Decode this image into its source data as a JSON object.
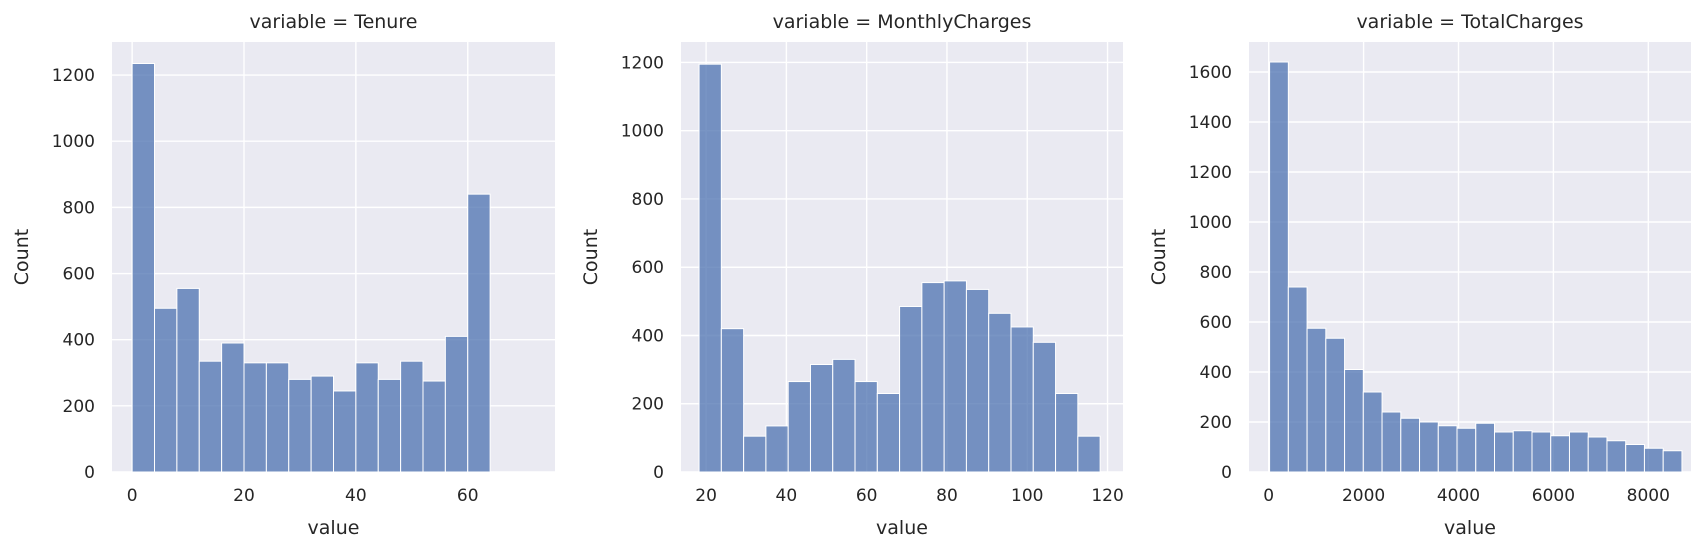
{
  "chart_data": [
    {
      "type": "bar",
      "title": "variable = Tenure",
      "xlabel": "value",
      "ylabel": "Count",
      "xlim": [
        -3.6,
        75.6
      ],
      "ylim": [
        0,
        1300
      ],
      "xticks": [
        0,
        20,
        40,
        60
      ],
      "yticks": [
        0,
        200,
        400,
        600,
        800,
        1000,
        1200
      ],
      "grid": true,
      "bin_edges": [
        0,
        4,
        8,
        12,
        16,
        20,
        24,
        28,
        32,
        36,
        40,
        44,
        48,
        52,
        56,
        60,
        64,
        68,
        72
      ],
      "values": [
        1235,
        495,
        555,
        335,
        390,
        330,
        330,
        280,
        290,
        245,
        330,
        280,
        335,
        275,
        410,
        840,
        0,
        0
      ]
    },
    {
      "type": "bar",
      "title": "variable = MonthlyCharges",
      "xlabel": "value",
      "ylabel": "Count",
      "xlim": [
        13.75,
        123.85
      ],
      "ylim": [
        0,
        1260
      ],
      "xticks": [
        20,
        40,
        60,
        80,
        100,
        120
      ],
      "yticks": [
        0,
        200,
        400,
        600,
        800,
        1000,
        1200
      ],
      "grid": true,
      "bin_edges": [
        18.25,
        23.8,
        29.35,
        34.9,
        40.45,
        46.0,
        51.55,
        57.1,
        62.65,
        68.2,
        73.75,
        79.3,
        84.85,
        90.4,
        95.95,
        101.5,
        107.05,
        112.6,
        118.15
      ],
      "values": [
        1195,
        420,
        105,
        135,
        265,
        315,
        330,
        265,
        230,
        485,
        555,
        560,
        535,
        465,
        425,
        380,
        230,
        105
      ]
    },
    {
      "type": "bar",
      "title": "variable = TotalCharges",
      "xlabel": "value",
      "ylabel": "Count",
      "xlim": [
        -415,
        8900
      ],
      "ylim": [
        0,
        1720
      ],
      "xticks": [
        0,
        2000,
        4000,
        6000,
        8000
      ],
      "yticks": [
        0,
        200,
        400,
        600,
        800,
        1000,
        1200,
        1400,
        1600
      ],
      "grid": true,
      "bin_edges": [
        19,
        414,
        809,
        1204,
        1599,
        1994,
        2389,
        2784,
        3179,
        3574,
        3969,
        4364,
        4759,
        5154,
        5549,
        5944,
        6339,
        6734,
        7129,
        7524,
        7919,
        8314,
        8709
      ],
      "values": [
        1640,
        740,
        575,
        535,
        410,
        320,
        240,
        215,
        200,
        185,
        175,
        195,
        160,
        165,
        160,
        145,
        160,
        140,
        125,
        110,
        95,
        85
      ]
    }
  ]
}
